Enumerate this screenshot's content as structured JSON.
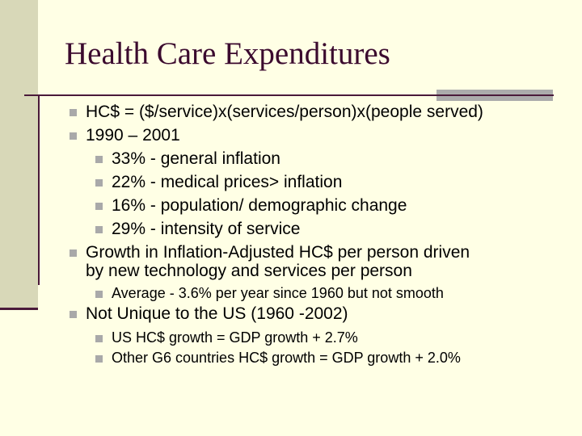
{
  "slide": {
    "title": "Health Care Expenditures",
    "accent_color": "#4A1A3A",
    "title_color": "#3B0A2E",
    "bullet_color": "#A9A9A9",
    "bullet_icon": "square-bullet-icon",
    "items": [
      {
        "level": 1,
        "text": "HC$ = ($/service)x(services/person)x(people served)"
      },
      {
        "level": 1,
        "text": "1990 – 2001"
      },
      {
        "level": 2,
        "text": "33% - general inflation"
      },
      {
        "level": 2,
        "text": "22% - medical prices> inflation"
      },
      {
        "level": 2,
        "text": "16% - population/ demographic change"
      },
      {
        "level": 2,
        "text": "29% - intensity of service"
      },
      {
        "level": 1,
        "text": "Growth in Inflation-Adjusted HC$ per person driven",
        "continuation": "by new technology and services per person"
      },
      {
        "level": 3,
        "text": "Average - 3.6% per year since 1960 but not smooth"
      },
      {
        "level": 1,
        "text": "Not Unique to the US (1960 -2002)"
      },
      {
        "level": 3,
        "text": "US HC$ growth = GDP growth + 2.7%"
      },
      {
        "level": 3,
        "text": "Other G6 countries HC$ growth = GDP growth + 2.0%"
      }
    ]
  }
}
